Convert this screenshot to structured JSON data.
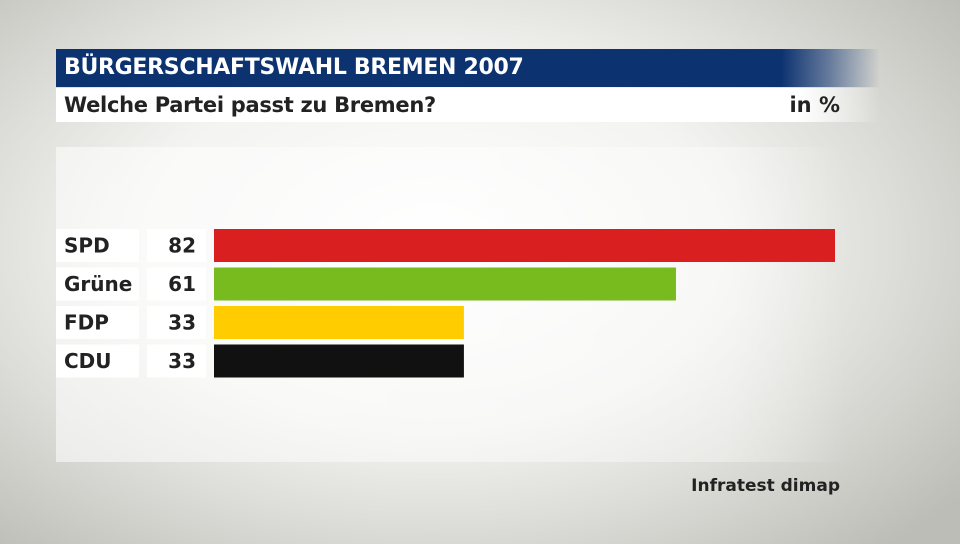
{
  "header": {
    "title": "BÜRGERSCHAFTSWAHL BREMEN 2007",
    "subtitle": "Welche Partei passt zu Bremen?",
    "unit": "in %"
  },
  "footer": {
    "source": "Infratest dimap"
  },
  "chart_data": {
    "type": "bar",
    "orientation": "horizontal",
    "title": "BÜRGERSCHAFTSWAHL BREMEN 2007",
    "subtitle": "Welche Partei passt zu Bremen?",
    "unit": "in %",
    "categories": [
      "SPD",
      "Grüne",
      "FDP",
      "CDU"
    ],
    "values": [
      82,
      61,
      33,
      33
    ],
    "colors": [
      "#d91f1f",
      "#77bb1f",
      "#ffcc00",
      "#111111"
    ],
    "xlim": [
      0,
      82
    ],
    "grid": false,
    "legend": "none"
  }
}
